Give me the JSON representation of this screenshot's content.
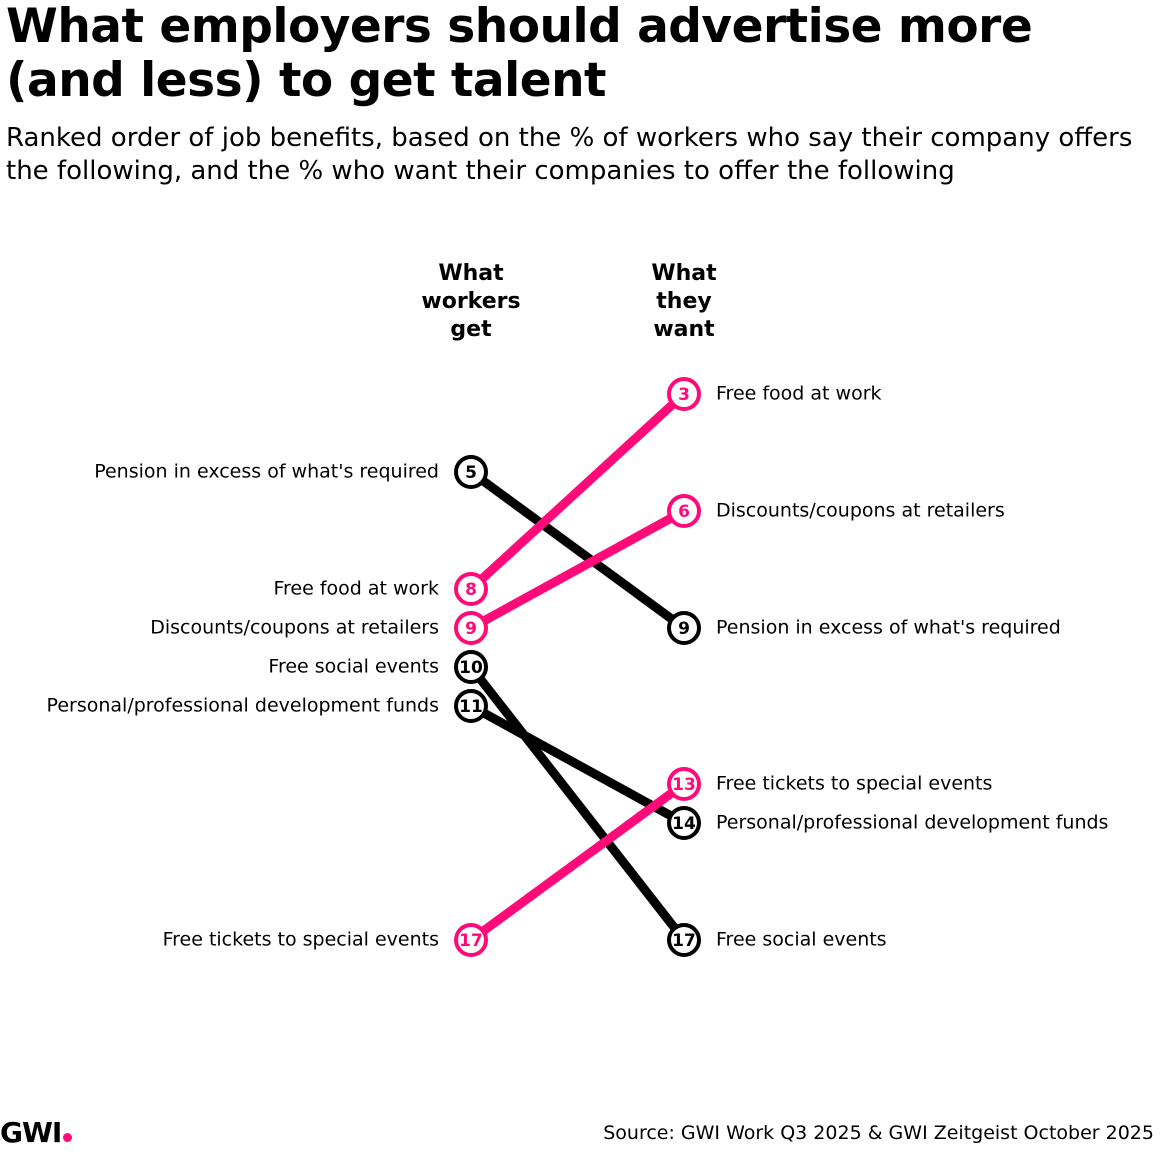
{
  "chart_data": {
    "type": "slope",
    "title": "What employers should advertise more (and less) to get talent",
    "subtitle": "Ranked order of job benefits, based on the % of workers who say their company offers the following, and the % who want their companies to offer the following",
    "categories": [
      "What workers get",
      "What they want"
    ],
    "ylim": [
      3,
      17
    ],
    "series": [
      {
        "name": "Pension in excess of what's required",
        "color": "#000000",
        "values": [
          5,
          9
        ]
      },
      {
        "name": "Free food at work",
        "color": "#ff0a78",
        "values": [
          8,
          3
        ]
      },
      {
        "name": "Discounts/coupons at retailers",
        "color": "#ff0a78",
        "values": [
          9,
          6
        ]
      },
      {
        "name": "Free social events",
        "color": "#000000",
        "values": [
          10,
          17
        ]
      },
      {
        "name": "Personal/professional development funds",
        "color": "#000000",
        "values": [
          11,
          14
        ]
      },
      {
        "name": "Free tickets to special events",
        "color": "#ff0a78",
        "values": [
          17,
          13
        ]
      }
    ],
    "source": "Source: GWI Work Q3 2025 & GWI Zeitgeist October 2025",
    "logo": "GWI"
  }
}
